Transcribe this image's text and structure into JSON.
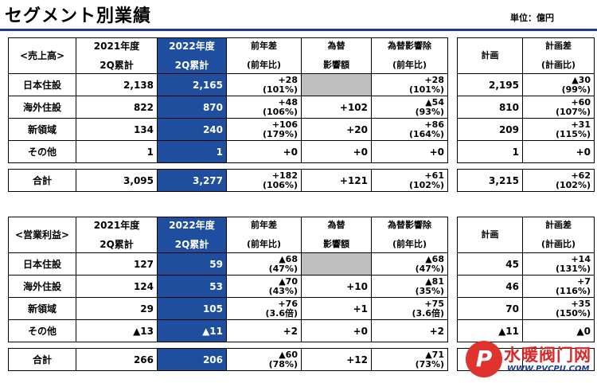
{
  "title": "セグメント別業績",
  "unit": "単位：億円",
  "headers": {
    "y2021": "2021年度",
    "y2022": "2022年度",
    "cum": "2Q累計",
    "yoy": "前年差",
    "yoy_sub": "(前年比)",
    "fx": "為替",
    "fx_sub": "影響額",
    "exfx": "為替影響除",
    "exfx_sub": "(前年比)",
    "plan": "計画",
    "plan_diff": "計画差",
    "plan_sub": "(計画比)"
  },
  "sales": {
    "label": "<売上高>",
    "rows": [
      {
        "name": "日本住設",
        "v2021": "2,138",
        "v2022": "2,165",
        "yoy": "+28",
        "yoy_pct": "(101%)",
        "fx": "",
        "exfx": "+28",
        "exfx_pct": "(101%)",
        "plan": "2,195",
        "pdiff": "▲30",
        "pdiff_pct": "(99%)"
      },
      {
        "name": "海外住設",
        "v2021": "822",
        "v2022": "870",
        "yoy": "+48",
        "yoy_pct": "(106%)",
        "fx": "+102",
        "exfx": "▲54",
        "exfx_pct": "(93%)",
        "plan": "810",
        "pdiff": "+60",
        "pdiff_pct": "(107%)"
      },
      {
        "name": "新領域",
        "v2021": "134",
        "v2022": "240",
        "yoy": "+106",
        "yoy_pct": "(179%)",
        "fx": "+20",
        "exfx": "+86",
        "exfx_pct": "(164%)",
        "plan": "209",
        "pdiff": "+31",
        "pdiff_pct": "(115%)"
      },
      {
        "name": "その他",
        "v2021": "1",
        "v2022": "1",
        "yoy": "+0",
        "yoy_pct": "",
        "fx": "+0",
        "exfx": "+0",
        "exfx_pct": "",
        "plan": "1",
        "pdiff": "+0",
        "pdiff_pct": ""
      }
    ],
    "total": {
      "name": "合計",
      "v2021": "3,095",
      "v2022": "3,277",
      "yoy": "+182",
      "yoy_pct": "(106%)",
      "fx": "+121",
      "exfx": "+61",
      "exfx_pct": "(102%)",
      "plan": "3,215",
      "pdiff": "+62",
      "pdiff_pct": "(102%)"
    }
  },
  "profit": {
    "label": "<営業利益>",
    "rows": [
      {
        "name": "日本住設",
        "v2021": "127",
        "v2022": "59",
        "yoy": "▲68",
        "yoy_pct": "(47%)",
        "fx": "",
        "exfx": "▲68",
        "exfx_pct": "(47%)",
        "plan": "45",
        "pdiff": "+14",
        "pdiff_pct": "(131%)"
      },
      {
        "name": "海外住設",
        "v2021": "124",
        "v2022": "53",
        "yoy": "▲70",
        "yoy_pct": "(43%)",
        "fx": "+10",
        "exfx": "▲81",
        "exfx_pct": "(35%)",
        "plan": "46",
        "pdiff": "+7",
        "pdiff_pct": "(116%)"
      },
      {
        "name": "新領域",
        "v2021": "29",
        "v2022": "105",
        "yoy": "+76",
        "yoy_pct": "(3.6倍)",
        "fx": "+1",
        "exfx": "+75",
        "exfx_pct": "(3.6倍)",
        "plan": "70",
        "pdiff": "+35",
        "pdiff_pct": "(150%)"
      },
      {
        "name": "その他",
        "v2021": "▲13",
        "v2022": "▲11",
        "yoy": "+2",
        "yoy_pct": "",
        "fx": "+0",
        "exfx": "+2",
        "exfx_pct": "",
        "plan": "▲11",
        "pdiff": "▲0",
        "pdiff_pct": ""
      }
    ],
    "total": {
      "name": "合計",
      "v2021": "266",
      "v2022": "206",
      "yoy": "▲60",
      "yoy_pct": "(78%)",
      "fx": "+12",
      "exfx": "▲71",
      "exfx_pct": "(73%)",
      "plan": "",
      "pdiff": "",
      "pdiff_pct": ""
    }
  },
  "watermark": {
    "logo": "P",
    "text1": "水暖阀门网",
    "text2": "WWW.PVCPU.COM"
  }
}
